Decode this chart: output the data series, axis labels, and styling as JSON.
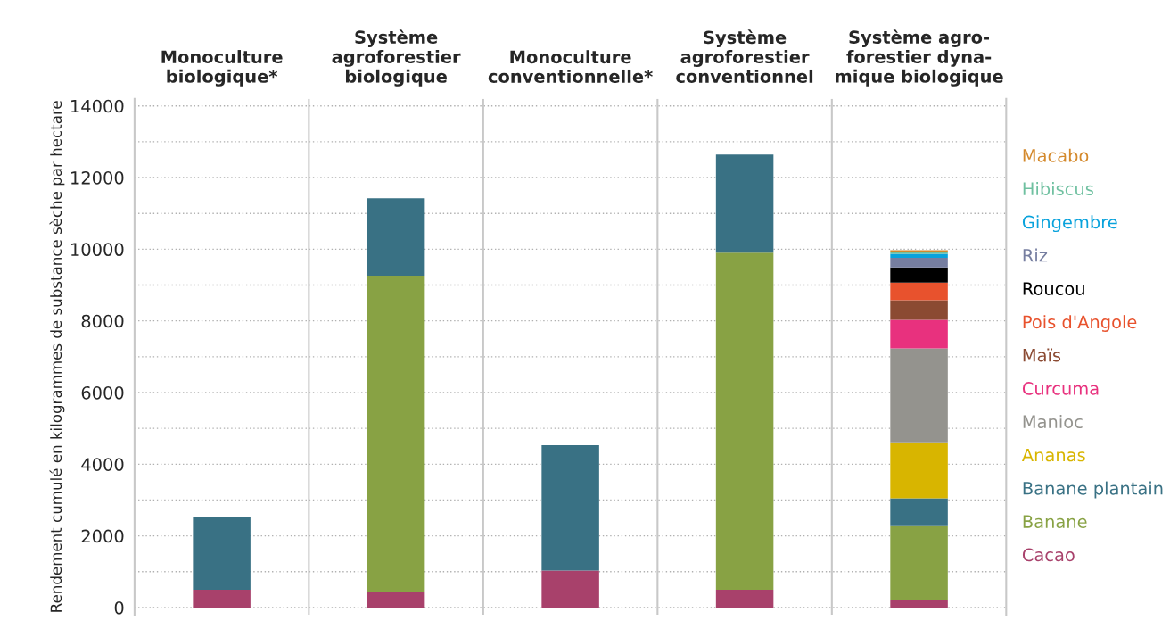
{
  "chart_data": {
    "type": "bar",
    "stacked": true,
    "ylabel": "Rendement cumulé en kilogrammes de substance sèche par hectare",
    "categories": [
      "Monoculture\nbiologique*",
      "Système\nagroforestier\nbiologique",
      "Monoculture\nconventionnelle*",
      "Système\nagroforestier\nconventionnel",
      "Système agro-\nforestier dyna-\nmique biologique"
    ],
    "series": [
      {
        "name": "Cacao",
        "color": "#a8416b",
        "values": [
          500,
          420,
          1030,
          500,
          210
        ]
      },
      {
        "name": "Banane",
        "color": "#88a244",
        "values": [
          null,
          8840,
          null,
          9400,
          2060
        ]
      },
      {
        "name": "Banane plantain",
        "color": "#397184",
        "values": [
          2030,
          2160,
          3500,
          2740,
          780
        ]
      },
      {
        "name": "Ananas",
        "color": "#d8b500",
        "values": [
          null,
          null,
          null,
          null,
          1560
        ]
      },
      {
        "name": "Manioc",
        "color": "#94938e",
        "values": [
          null,
          null,
          null,
          null,
          2620
        ]
      },
      {
        "name": "Curcuma",
        "color": "#e8317e",
        "values": [
          null,
          null,
          null,
          null,
          800
        ]
      },
      {
        "name": "Maïs",
        "color": "#8b4a32",
        "values": [
          null,
          null,
          null,
          null,
          550
        ]
      },
      {
        "name": "Pois d'Angole",
        "color": "#e8522d",
        "values": [
          null,
          null,
          null,
          null,
          490
        ]
      },
      {
        "name": "Roucou",
        "color": "#000000",
        "values": [
          null,
          null,
          null,
          null,
          420
        ]
      },
      {
        "name": "Riz",
        "color": "#767ea0",
        "values": [
          null,
          null,
          null,
          null,
          270
        ]
      },
      {
        "name": "Gingembre",
        "color": "#08a2dc",
        "values": [
          null,
          null,
          null,
          null,
          110
        ]
      },
      {
        "name": "Hibiscus",
        "color": "#6fc0a0",
        "values": [
          null,
          null,
          null,
          null,
          40
        ]
      },
      {
        "name": "Macabo",
        "color": "#d4892c",
        "values": [
          null,
          null,
          null,
          null,
          60
        ]
      }
    ],
    "ylim": [
      -200,
      14200
    ],
    "yticks": [
      0,
      {
        "value": 1000,
        "label": null
      },
      2000,
      {
        "value": 3000,
        "label": null
      },
      4000,
      {
        "value": 5000,
        "label": null
      },
      6000,
      {
        "value": 7000,
        "label": null
      },
      8000,
      {
        "value": 9000,
        "label": null
      },
      10000,
      {
        "value": 11000,
        "label": null
      },
      12000,
      {
        "value": 13000,
        "label": null
      },
      14000
    ],
    "grid": "y",
    "legend": "right"
  }
}
